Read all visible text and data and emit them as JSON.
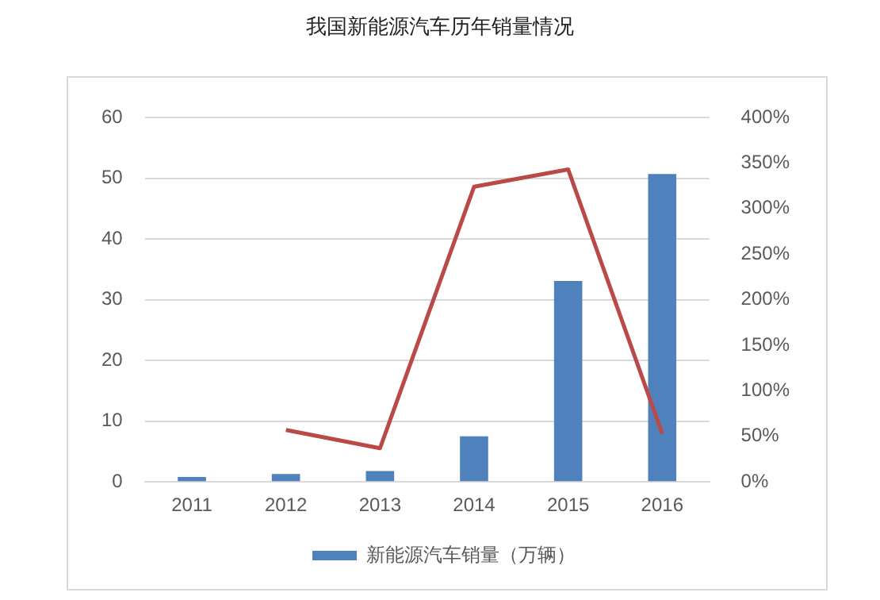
{
  "chart_data": {
    "type": "bar",
    "title": "我国新能源汽车历年销量情况",
    "categories": [
      "2011",
      "2012",
      "2013",
      "2014",
      "2015",
      "2016"
    ],
    "series": [
      {
        "name": "新能源汽车销量（万辆）",
        "color": "#4f81bd",
        "values": [
          0.8,
          1.3,
          1.8,
          7.5,
          33.1,
          50.7
        ]
      },
      {
        "type": "line",
        "axis": "y2",
        "color": "#b94a48",
        "values": [
          null,
          57,
          37,
          324,
          343,
          53
        ]
      }
    ],
    "ylim": [
      0,
      60
    ],
    "yticks": [
      0,
      10,
      20,
      30,
      40,
      50,
      60
    ],
    "y2lim": [
      0,
      400
    ],
    "y2ticks": [
      {
        "value": 0,
        "label": "0%"
      },
      {
        "value": 50,
        "label": "50%"
      },
      {
        "value": 100,
        "label": "100%"
      },
      {
        "value": 150,
        "label": "150%"
      },
      {
        "value": 200,
        "label": "200%"
      },
      {
        "value": 250,
        "label": "250%"
      },
      {
        "value": 300,
        "label": "300%"
      },
      {
        "value": 350,
        "label": "350%"
      },
      {
        "value": 400,
        "label": "400%"
      }
    ],
    "grid": "y",
    "legend": "bottom",
    "marker": "none"
  }
}
